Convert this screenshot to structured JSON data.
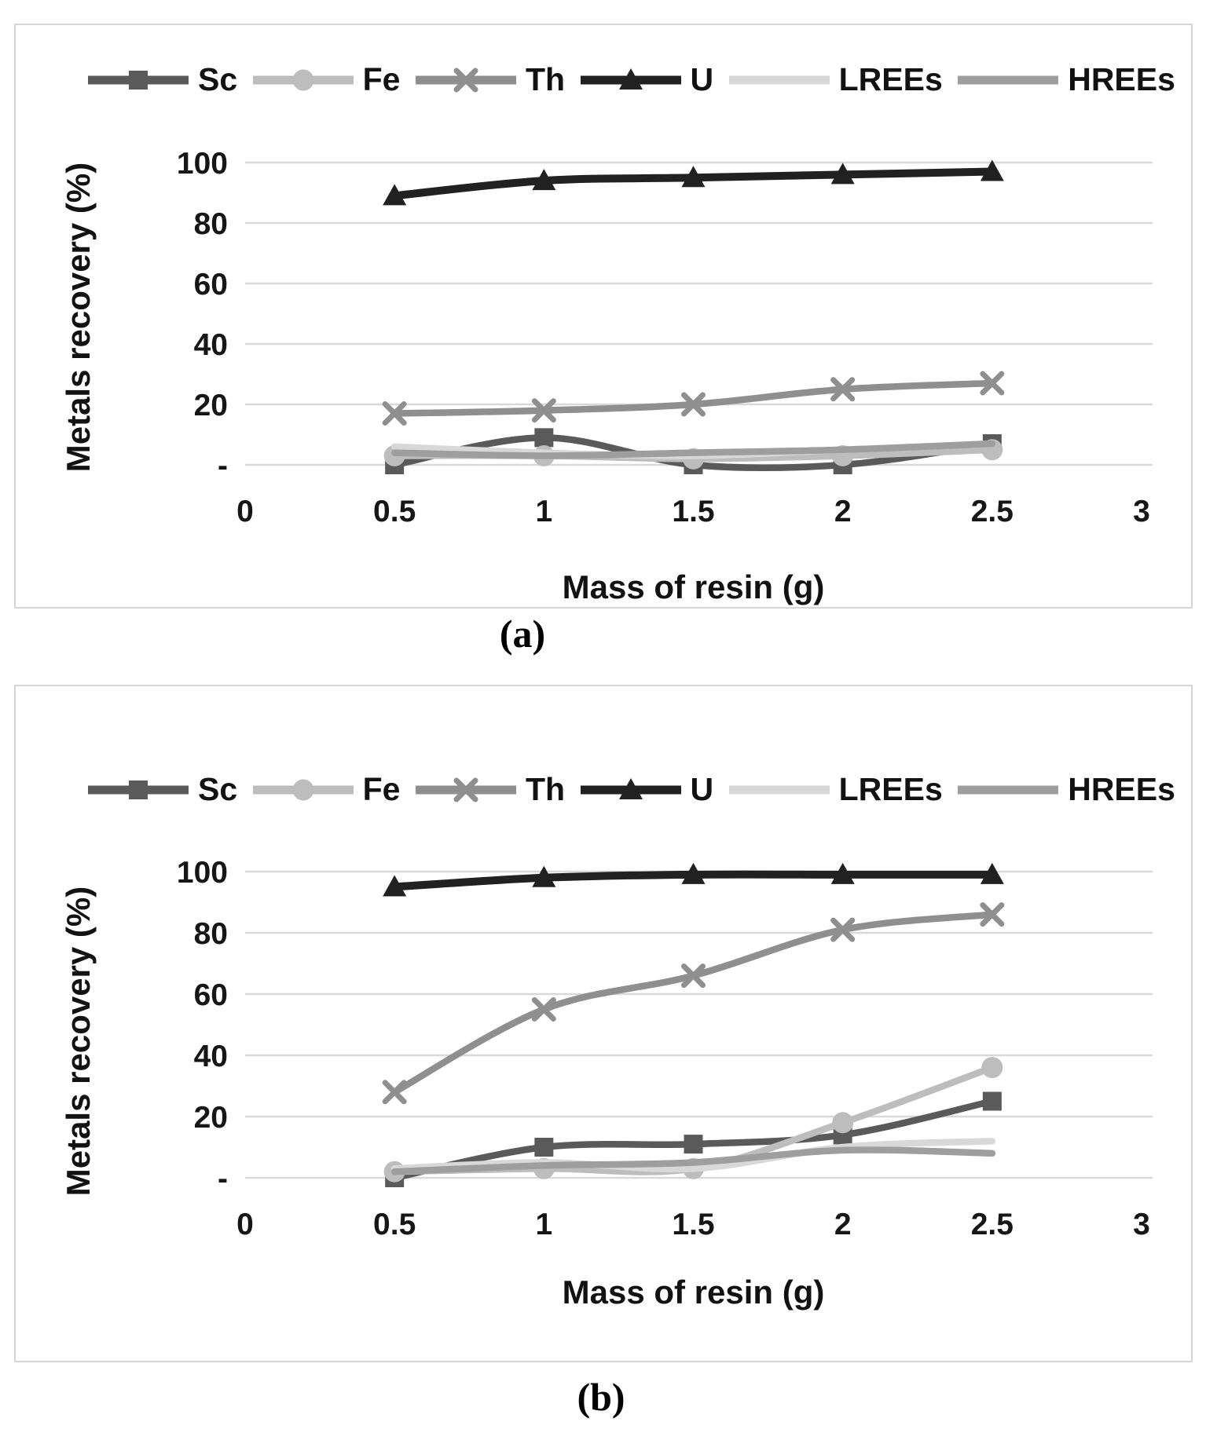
{
  "figure": {
    "y_axis_title": "Metals recovery (%)",
    "x_axis_title": "Mass of resin (g)",
    "x_tick_values": [
      0,
      0.5,
      1,
      1.5,
      2,
      2.5,
      3
    ],
    "x_tick_labels": [
      "0",
      "0.5",
      "1",
      "1.5",
      "2",
      "2.5",
      "3"
    ],
    "y_tick_values": [
      0,
      20,
      40,
      60,
      80,
      100
    ],
    "y_tick_labels": [
      "-",
      "20",
      "40",
      "60",
      "80",
      "100"
    ],
    "grid_color": "#d9d9d9",
    "series_meta": [
      {
        "name": "Sc",
        "color": "#5a5a5a",
        "marker": "square"
      },
      {
        "name": "Fe",
        "color": "#bdbdbd",
        "marker": "circle"
      },
      {
        "name": "Th",
        "color": "#8f8f8f",
        "marker": "x"
      },
      {
        "name": "U",
        "color": "#212121",
        "marker": "triangle"
      },
      {
        "name": "LREEs",
        "color": "#d8d8d8",
        "marker": "none"
      },
      {
        "name": "HREEs",
        "color": "#9e9e9e",
        "marker": "none"
      }
    ]
  },
  "chart_data": [
    {
      "id": "a",
      "type": "line",
      "caption": "(a)",
      "xlabel": "Mass of resin (g)",
      "ylabel": "Metals recovery (%)",
      "x": [
        0.5,
        1,
        1.5,
        2,
        2.5
      ],
      "xlim": [
        0,
        3
      ],
      "ylim": [
        0,
        100
      ],
      "grid": true,
      "legend_position": "top",
      "series": [
        {
          "name": "Sc",
          "values": [
            0,
            9,
            0,
            0,
            7
          ]
        },
        {
          "name": "Fe",
          "values": [
            3,
            3,
            2,
            3,
            5
          ]
        },
        {
          "name": "Th",
          "values": [
            17,
            18,
            20,
            25,
            27
          ]
        },
        {
          "name": "U",
          "values": [
            89,
            94,
            95,
            96,
            97
          ]
        },
        {
          "name": "LREEs",
          "values": [
            6,
            4,
            3,
            5,
            7
          ]
        },
        {
          "name": "HREEs",
          "values": [
            4,
            3,
            4,
            5,
            7
          ]
        }
      ]
    },
    {
      "id": "b",
      "type": "line",
      "caption": "(b)",
      "xlabel": "Mass of resin (g)",
      "ylabel": "Metals recovery (%)",
      "x": [
        0.5,
        1,
        1.5,
        2,
        2.5
      ],
      "xlim": [
        0,
        3
      ],
      "ylim": [
        0,
        100
      ],
      "grid": true,
      "legend_position": "top",
      "series": [
        {
          "name": "Sc",
          "values": [
            0,
            10,
            11,
            14,
            25
          ]
        },
        {
          "name": "Fe",
          "values": [
            2,
            3,
            3,
            18,
            36
          ]
        },
        {
          "name": "Th",
          "values": [
            28,
            55,
            66,
            81,
            86
          ]
        },
        {
          "name": "U",
          "values": [
            95,
            98,
            99,
            99,
            99
          ]
        },
        {
          "name": "LREEs",
          "values": [
            3,
            5,
            3,
            10,
            12
          ]
        },
        {
          "name": "HREEs",
          "values": [
            2,
            4,
            5,
            9,
            8
          ]
        }
      ]
    }
  ]
}
